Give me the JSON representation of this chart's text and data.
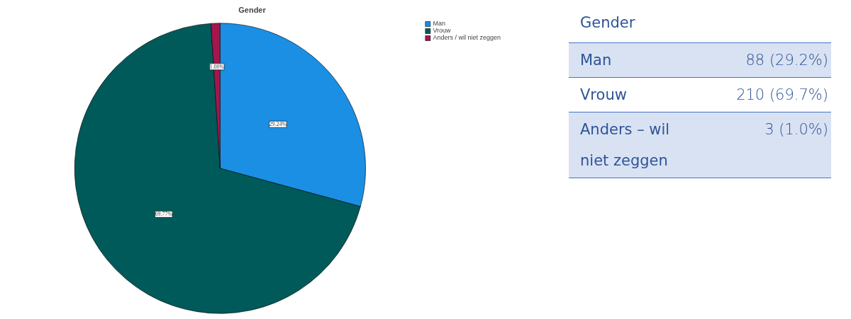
{
  "chart_data": [
    {
      "type": "pie",
      "title": "Gender",
      "categories": [
        "Man",
        "Vrouw",
        "Anders / wil niet zeggen"
      ],
      "values": [
        29.24,
        69.77,
        1.0
      ],
      "colors": [
        "#1a8fe3",
        "#005a5a",
        "#a3174c"
      ],
      "value_labels": [
        "29.24%",
        "69.77%",
        "1.00%"
      ],
      "legend": "top right"
    },
    {
      "type": "other",
      "title": "Gender",
      "categories": [
        "Man",
        "Vrouw",
        "Anders – wil niet zeggen"
      ],
      "value_labels": [
        "88 (29.2%)",
        "210 (69.7%)",
        "3 (1.0%)"
      ]
    }
  ]
}
